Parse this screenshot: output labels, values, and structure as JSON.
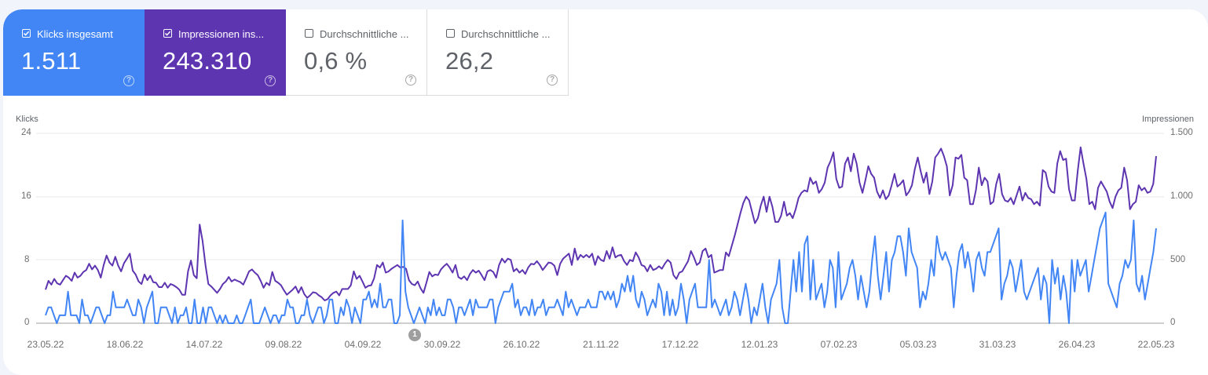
{
  "cards": [
    {
      "label": "Klicks insgesamt",
      "value": "1.511",
      "checked": true,
      "color": "#4285f4"
    },
    {
      "label": "Impressionen ins...",
      "value": "243.310",
      "checked": true,
      "color": "#5e35b1"
    },
    {
      "label": "Durchschnittliche ...",
      "value": "0,6 %",
      "checked": false
    },
    {
      "label": "Durchschnittliche ...",
      "value": "26,2",
      "checked": false
    }
  ],
  "help_glyph": "?",
  "annotation": {
    "label": "1"
  },
  "chart_data": {
    "type": "line",
    "title": "",
    "xlabel": "",
    "left_axis": {
      "label": "Klicks",
      "ticks": [
        "24",
        "16",
        "8",
        "0"
      ],
      "range": [
        0,
        24
      ]
    },
    "right_axis": {
      "label": "Impressionen",
      "ticks": [
        "1.500",
        "1.000",
        "500",
        "0"
      ],
      "range": [
        0,
        1500
      ]
    },
    "x_ticks": [
      "23.05.22",
      "18.06.22",
      "14.07.22",
      "09.08.22",
      "04.09.22",
      "30.09.22",
      "26.10.22",
      "21.11.22",
      "17.12.22",
      "12.01.23",
      "07.02.23",
      "05.03.23",
      "31.03.23",
      "26.04.23",
      "22.05.23"
    ],
    "x_range": [
      "23.05.22",
      "22.05.23"
    ],
    "grid": true,
    "legend": "metric cards (top)",
    "series": [
      {
        "name": "Klicks",
        "axis": "left",
        "color": "#4285f4",
        "values": [
          1,
          2,
          2,
          1,
          0,
          1,
          1,
          1,
          4,
          1,
          1,
          1,
          0,
          3,
          1,
          1,
          0,
          1,
          2,
          2,
          1,
          0,
          1,
          1,
          4,
          2,
          2,
          2,
          2,
          3,
          2,
          1,
          1,
          3,
          2,
          0,
          2,
          3,
          4,
          0,
          0,
          2,
          2,
          2,
          1,
          0,
          2,
          0,
          1,
          1,
          2,
          0,
          0,
          3,
          0,
          0,
          2,
          0,
          2,
          2,
          1,
          0,
          1,
          0,
          1,
          0,
          0,
          0,
          1,
          0,
          0,
          1,
          2,
          3,
          0,
          0,
          0,
          1,
          2,
          1,
          0,
          1,
          1,
          0,
          1,
          1,
          3,
          2,
          2,
          0,
          0,
          1,
          1,
          3,
          1,
          0,
          1,
          2,
          2,
          0,
          1,
          3,
          3,
          0,
          0,
          2,
          1,
          3,
          2,
          0,
          2,
          1,
          0,
          3,
          3,
          4,
          2,
          3,
          2,
          5,
          2,
          2,
          3,
          3,
          0,
          0,
          1,
          13,
          4,
          2,
          1,
          0,
          1,
          2,
          1,
          0,
          2,
          1,
          3,
          1,
          2,
          1,
          1,
          3,
          3,
          2,
          0,
          2,
          2,
          1,
          2,
          3,
          1,
          3,
          2,
          2,
          2,
          2,
          3,
          3,
          0,
          2,
          3,
          4,
          4,
          4,
          5,
          2,
          3,
          1,
          2,
          2,
          1,
          3,
          1,
          2,
          2,
          3,
          1,
          2,
          2,
          2,
          3,
          2,
          1,
          4,
          2,
          3,
          2,
          1,
          2,
          2,
          2,
          3,
          2,
          2,
          2,
          4,
          4,
          3,
          4,
          3,
          4,
          2,
          3,
          5,
          4,
          6,
          4,
          6,
          3,
          2,
          4,
          3,
          1,
          2,
          3,
          2,
          5,
          4,
          1,
          4,
          1,
          3,
          1,
          2,
          5,
          3,
          0,
          3,
          4,
          5,
          2,
          2,
          2,
          2,
          8,
          2,
          3,
          2,
          1,
          2,
          3,
          1,
          2,
          4,
          3,
          1,
          3,
          5,
          3,
          0,
          2,
          1,
          3,
          5,
          2,
          0,
          3,
          4,
          5,
          8,
          2,
          0,
          0,
          4,
          8,
          4,
          9,
          4,
          10,
          11,
          3,
          8,
          3,
          4,
          5,
          2,
          4,
          8,
          7,
          2,
          9,
          3,
          4,
          5,
          7,
          8,
          6,
          3,
          6,
          4,
          2,
          4,
          8,
          11,
          6,
          3,
          6,
          9,
          4,
          8,
          9,
          11,
          11,
          9,
          6,
          12,
          9,
          8,
          7,
          2,
          4,
          3,
          5,
          8,
          6,
          11,
          9,
          8,
          9,
          8,
          7,
          2,
          6,
          9,
          10,
          7,
          9,
          7,
          4,
          8,
          9,
          7,
          6,
          9,
          9,
          10,
          11,
          12,
          3,
          5,
          6,
          8,
          7,
          4,
          6,
          8,
          4,
          3,
          4,
          5,
          6,
          7,
          3,
          6,
          5,
          0,
          8,
          5,
          7,
          3,
          6,
          4,
          0,
          8,
          4,
          8,
          6,
          7,
          8,
          4,
          6,
          8,
          10,
          12,
          13,
          14,
          5,
          4,
          3,
          2,
          5,
          6,
          8,
          7,
          8,
          13,
          5,
          4,
          6,
          3,
          5,
          7,
          9,
          12
        ]
      },
      {
        "name": "Impressionen",
        "axis": "right",
        "color": "#5e35b1",
        "values": [
          265,
          335,
          305,
          350,
          315,
          305,
          340,
          375,
          360,
          335,
          400,
          360,
          375,
          405,
          420,
          470,
          425,
          455,
          420,
          360,
          460,
          535,
          480,
          455,
          525,
          455,
          410,
          475,
          510,
          550,
          415,
          385,
          330,
          310,
          385,
          340,
          375,
          325,
          320,
          285,
          285,
          320,
          280,
          310,
          300,
          285,
          265,
          225,
          225,
          410,
          495,
          380,
          355,
          780,
          650,
          460,
          310,
          290,
          265,
          240,
          270,
          310,
          330,
          365,
          330,
          345,
          335,
          325,
          305,
          355,
          410,
          425,
          400,
          380,
          335,
          280,
          320,
          300,
          405,
          335,
          320,
          300,
          260,
          225,
          245,
          265,
          290,
          240,
          285,
          230,
          200,
          220,
          245,
          240,
          220,
          205,
          180,
          190,
          220,
          240,
          250,
          220,
          270,
          270,
          270,
          300,
          410,
          350,
          375,
          330,
          280,
          295,
          300,
          355,
          460,
          440,
          480,
          400,
          410,
          430,
          445,
          460,
          440,
          445,
          430,
          340,
          310,
          300,
          330,
          275,
          240,
          320,
          405,
          370,
          385,
          380,
          425,
          450,
          470,
          440,
          400,
          460,
          365,
          350,
          370,
          340,
          390,
          420,
          400,
          415,
          380,
          340,
          410,
          420,
          405,
          360,
          460,
          510,
          480,
          510,
          500,
          410,
          430,
          400,
          420,
          390,
          440,
          470,
          465,
          490,
          460,
          420,
          450,
          480,
          475,
          455,
          380,
          470,
          510,
          530,
          550,
          460,
          590,
          500,
          540,
          520,
          540,
          520,
          550,
          460,
          530,
          500,
          490,
          570,
          510,
          600,
          520,
          535,
          540,
          490,
          460,
          500,
          490,
          560,
          520,
          460,
          450,
          410,
          460,
          420,
          430,
          450,
          430,
          470,
          500,
          480,
          380,
          350,
          400,
          410,
          450,
          490,
          570,
          520,
          460,
          480,
          570,
          590,
          520,
          540,
          400,
          410,
          420,
          420,
          560,
          530,
          610,
          690,
          780,
          870,
          950,
          1000,
          970,
          880,
          790,
          830,
          930,
          1000,
          880,
          1000,
          920,
          800,
          800,
          850,
          960,
          850,
          870,
          830,
          900,
          990,
          1030,
          1050,
          1040,
          1150,
          1100,
          1120,
          1030,
          1060,
          1110,
          1230,
          1280,
          1350,
          1140,
          1070,
          1080,
          1260,
          1310,
          1200,
          1340,
          1260,
          1110,
          1030,
          1130,
          1240,
          1180,
          1150,
          1040,
          990,
          1050,
          980,
          1010,
          1090,
          1180,
          1080,
          1100,
          1130,
          1010,
          1040,
          1090,
          1220,
          1310,
          1200,
          1110,
          1190,
          1020,
          1120,
          1310,
          1340,
          1380,
          1320,
          1240,
          1010,
          1090,
          1310,
          1300,
          1330,
          1150,
          1130,
          940,
          940,
          1050,
          1230,
          1090,
          1150,
          1120,
          940,
          960,
          1100,
          1180,
          1020,
          970,
          960,
          990,
          940,
          1010,
          1080,
          970,
          1030,
          990,
          980,
          940,
          960,
          930,
          1210,
          1190,
          1080,
          1040,
          1030,
          1260,
          1360,
          1290,
          1300,
          1060,
          970,
          970,
          1200,
          1390,
          1260,
          1140,
          940,
          960,
          900,
          1070,
          1120,
          1080,
          1040,
          960,
          910,
          1000,
          1050,
          1070,
          1230,
          1130,
          900,
          940,
          960,
          1090,
          1050,
          1070,
          1030,
          1040,
          1100,
          1320
        ]
      }
    ]
  }
}
